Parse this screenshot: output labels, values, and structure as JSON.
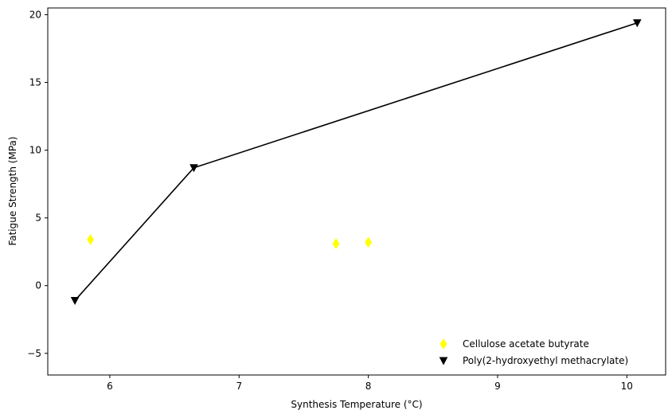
{
  "chart_data": {
    "type": "scatter",
    "title": "",
    "xlabel": "Synthesis Temperature (°C)",
    "ylabel": "Fatigue Strength (MPa)",
    "xlim": [
      5.52,
      10.3
    ],
    "ylim": [
      -6.6,
      20.5
    ],
    "xticks": [
      6,
      7,
      8,
      9,
      10
    ],
    "yticks": [
      -5,
      0,
      5,
      10,
      15,
      20
    ],
    "xtick_labels": [
      "6",
      "7",
      "8",
      "9",
      "10"
    ],
    "ytick_labels": [
      "−5",
      "0",
      "5",
      "10",
      "15",
      "20"
    ],
    "grid": false,
    "legend_position": "lower-right",
    "series": [
      {
        "name": "Cellulose acetate butyrate",
        "marker": "thin_diamond",
        "color": "#ffff00",
        "line": false,
        "x": [
          5.85,
          7.75,
          8.0
        ],
        "y": [
          3.4,
          3.1,
          3.2
        ]
      },
      {
        "name": "Poly(2-hydroxyethyl methacrylate)",
        "marker": "triangle_down",
        "color": "#000000",
        "line": true,
        "x": [
          5.73,
          6.65,
          10.08
        ],
        "y": [
          -1.1,
          8.7,
          19.4
        ]
      }
    ]
  }
}
